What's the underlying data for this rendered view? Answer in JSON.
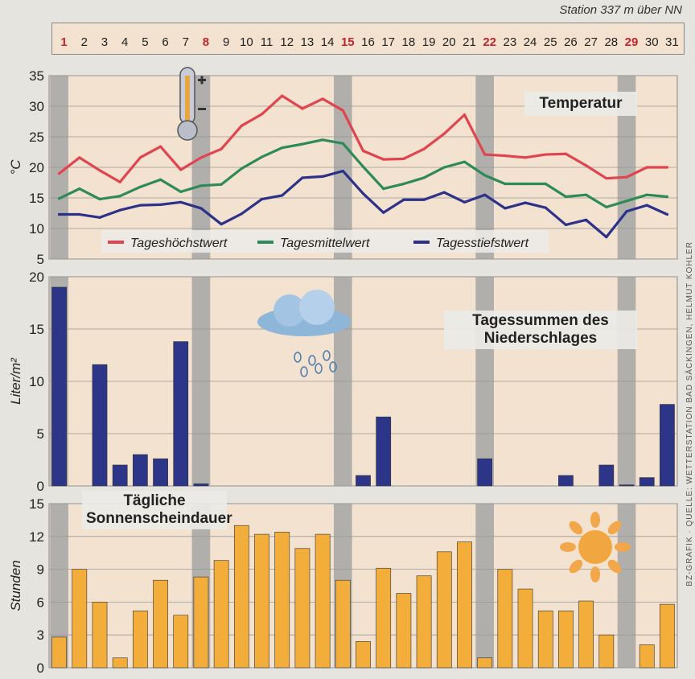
{
  "header": {
    "station": "Station 337 m über NN"
  },
  "credit": "BZ-GRAFIK · QUELLE: WETTERSTATION BAD SÄCKINGEN, HELMUT KOHLER",
  "days": {
    "values": [
      "1",
      "2",
      "3",
      "4",
      "5",
      "6",
      "7",
      "8",
      "9",
      "10",
      "11",
      "12",
      "13",
      "14",
      "15",
      "16",
      "17",
      "18",
      "19",
      "20",
      "21",
      "22",
      "23",
      "24",
      "25",
      "26",
      "27",
      "28",
      "29",
      "30",
      "31"
    ],
    "highlight_color": "#c0272d",
    "normal_color": "#222222",
    "sundays": [
      1,
      8,
      15,
      22,
      29
    ]
  },
  "colors": {
    "plot_bg": "#f2e2cf",
    "weekend_band": "#a6a6a6",
    "grid": "#999999",
    "high": "#e0454f",
    "mean": "#2e8a57",
    "low": "#2c318a",
    "rain_bar": "#2c3588",
    "sun_bar": "#f2ad3a"
  },
  "chart_data": [
    {
      "type": "line",
      "title": "Temperatur",
      "ylabel": "°C",
      "ylim": [
        5,
        35
      ],
      "yticks": [
        5,
        10,
        15,
        20,
        25,
        30,
        35
      ],
      "x": [
        1,
        2,
        3,
        4,
        5,
        6,
        7,
        8,
        9,
        10,
        11,
        12,
        13,
        14,
        15,
        16,
        17,
        18,
        19,
        20,
        21,
        22,
        23,
        24,
        25,
        26,
        27,
        28,
        29,
        30,
        31
      ],
      "series": [
        {
          "name": "Tageshöchstwert",
          "values": [
            19,
            21.6,
            19.5,
            17.6,
            21.6,
            23.4,
            19.6,
            21.6,
            23,
            26.8,
            28.7,
            31.7,
            29.6,
            31.2,
            29.3,
            22.7,
            21.3,
            21.4,
            23,
            25.5,
            28.6,
            22.1,
            21.9,
            21.6,
            22.1,
            22.2,
            20.3,
            18.2,
            18.4,
            20,
            20
          ]
        },
        {
          "name": "Tagesmittelwert",
          "values": [
            14.9,
            16.5,
            14.8,
            15.3,
            16.8,
            18,
            16,
            17,
            17.2,
            19.8,
            21.7,
            23.2,
            23.8,
            24.5,
            23.9,
            20.1,
            16.5,
            17.3,
            18.3,
            20,
            20.9,
            18.7,
            17.3,
            17.3,
            17.3,
            15.2,
            15.5,
            13.5,
            14.5,
            15.5,
            15.2
          ]
        },
        {
          "name": "Tagesstiefstwert",
          "values": [
            12.3,
            12.3,
            11.8,
            13,
            13.8,
            13.9,
            14.3,
            13.3,
            10.7,
            12.4,
            14.8,
            15.4,
            18.3,
            18.5,
            19.4,
            15.7,
            12.6,
            14.7,
            14.7,
            15.9,
            14.3,
            15.5,
            13.3,
            14.2,
            13.4,
            10.6,
            11.4,
            8.6,
            12.8,
            13.8,
            12.3
          ]
        }
      ],
      "legend_placement": "bottom"
    },
    {
      "type": "bar",
      "title": "Tagessummen des Niederschlages",
      "ylabel": "Liter/m²",
      "ylim": [
        0,
        20
      ],
      "yticks": [
        0,
        5,
        10,
        15,
        20
      ],
      "x": [
        1,
        2,
        3,
        4,
        5,
        6,
        7,
        8,
        9,
        10,
        11,
        12,
        13,
        14,
        15,
        16,
        17,
        18,
        19,
        20,
        21,
        22,
        23,
        24,
        25,
        26,
        27,
        28,
        29,
        30,
        31
      ],
      "values": [
        19,
        0,
        11.6,
        2,
        3,
        2.6,
        13.8,
        0.2,
        0,
        0,
        0,
        0,
        0,
        0,
        0,
        1,
        6.6,
        0,
        0,
        0,
        0,
        2.6,
        0,
        0,
        0,
        1,
        0,
        2,
        0.1,
        0.8,
        7.8
      ]
    },
    {
      "type": "bar",
      "title": "Tägliche Sonnenscheindauer",
      "ylabel": "Stunden",
      "ylim": [
        0,
        15
      ],
      "yticks": [
        0,
        3,
        6,
        9,
        12,
        15
      ],
      "x": [
        1,
        2,
        3,
        4,
        5,
        6,
        7,
        8,
        9,
        10,
        11,
        12,
        13,
        14,
        15,
        16,
        17,
        18,
        19,
        20,
        21,
        22,
        23,
        24,
        25,
        26,
        27,
        28,
        29,
        30,
        31
      ],
      "values": [
        2.8,
        9,
        6,
        0.9,
        5.2,
        8,
        4.8,
        8.3,
        9.8,
        13,
        12.2,
        12.4,
        10.9,
        12.2,
        8,
        2.4,
        9.1,
        6.8,
        8.4,
        10.6,
        11.5,
        0.9,
        9,
        7.2,
        5.2,
        5.2,
        6.1,
        3,
        0,
        2.1,
        5.8
      ]
    }
  ]
}
